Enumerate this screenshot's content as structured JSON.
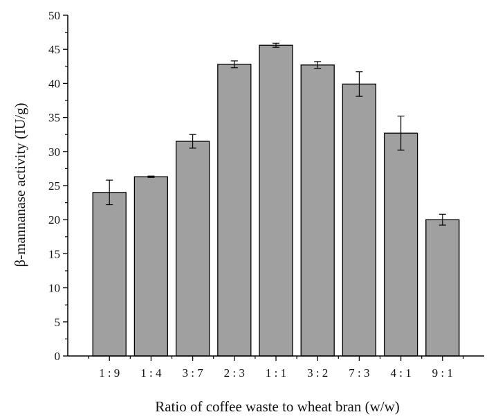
{
  "chart_data": {
    "type": "bar",
    "title": "",
    "xlabel": "Ratio of coffee waste to wheat bran (w/w)",
    "ylabel": "β-mannanase activity (IU/g)",
    "categories": [
      "1 : 9",
      "1 : 4",
      "3 : 7",
      "2 : 3",
      "1 : 1",
      "3 : 2",
      "7 : 3",
      "4 : 1",
      "9 : 1"
    ],
    "values": [
      24.0,
      26.3,
      31.5,
      42.8,
      45.6,
      42.7,
      39.9,
      32.7,
      20.0
    ],
    "errors": [
      1.8,
      0.1,
      1.0,
      0.5,
      0.3,
      0.5,
      1.8,
      2.5,
      0.8
    ],
    "ylim": [
      0,
      50
    ],
    "yticks": [
      0,
      5,
      10,
      15,
      20,
      25,
      30,
      35,
      40,
      45,
      50
    ],
    "grid": false,
    "colors": {
      "bar_fill": "#a0a0a0",
      "bar_stroke": "#000000",
      "axis": "#000000"
    }
  }
}
